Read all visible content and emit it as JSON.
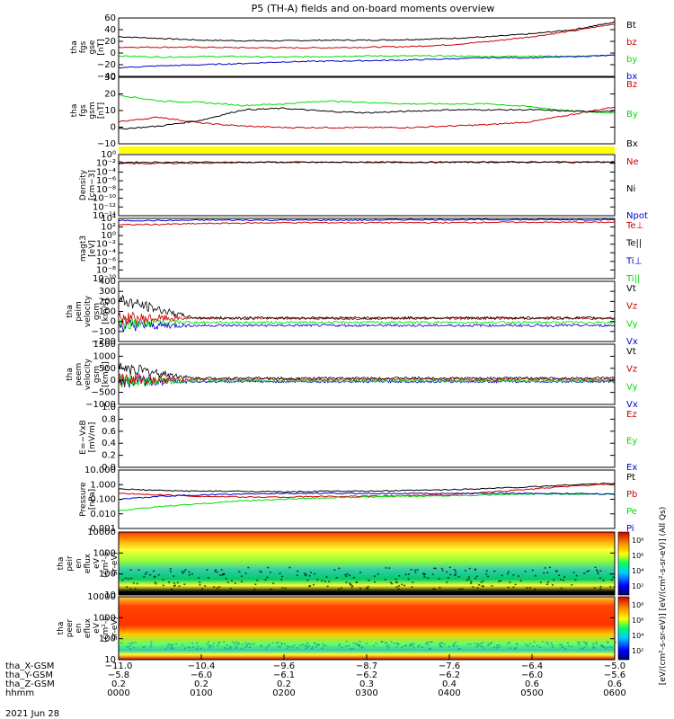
{
  "title": "P5 (TH-A) fields and on-board moments overview",
  "colors": {
    "black": "#000000",
    "red": "#cc0000",
    "green": "#00dd00",
    "blue": "#0000cc",
    "yellow": "#ffff00"
  },
  "chart_data": [
    {
      "id": "p1",
      "type": "line",
      "ylabel": [
        "tha",
        "fgs",
        "gse",
        "[nT]"
      ],
      "ylim": [
        -40,
        60
      ],
      "yticks": [
        "60",
        "40",
        "20",
        "0",
        "−20",
        "−40"
      ],
      "legend": [
        {
          "label": "Bt",
          "color": "black"
        },
        {
          "label": "bz",
          "color": "red"
        },
        {
          "label": "by",
          "color": "green"
        },
        {
          "label": "bx",
          "color": "blue"
        }
      ],
      "x_hours": [
        0,
        0.5,
        1,
        1.5,
        2,
        2.5,
        3,
        3.5,
        4,
        4.5,
        5,
        5.5,
        6
      ],
      "series": [
        {
          "label": "Bt",
          "values": [
            28,
            25,
            22,
            21,
            21,
            22,
            22,
            23,
            25,
            28,
            33,
            40,
            53
          ]
        },
        {
          "label": "bz",
          "values": [
            10,
            10,
            10,
            9,
            9,
            9,
            10,
            11,
            14,
            20,
            28,
            38,
            50
          ]
        },
        {
          "label": "by",
          "values": [
            -5,
            -7,
            -6,
            -6,
            -7,
            -6,
            -5,
            -5,
            -5,
            -6,
            -5,
            -6,
            -4
          ]
        },
        {
          "label": "bx",
          "values": [
            -25,
            -22,
            -20,
            -18,
            -15,
            -14,
            -13,
            -12,
            -10,
            -8,
            -8,
            -6,
            -4
          ]
        }
      ]
    },
    {
      "id": "p2",
      "type": "line",
      "ylabel": [
        "tha",
        "fgs",
        "gsm",
        "[nT]"
      ],
      "ylim": [
        -15,
        30
      ],
      "yticks": [
        "30",
        "20",
        "10",
        "0",
        "−10"
      ],
      "legend": [
        {
          "label": "Bz",
          "color": "red"
        },
        {
          "label": "By",
          "color": "green"
        },
        {
          "label": "Bx",
          "color": "black"
        }
      ],
      "x_hours": [
        0,
        0.5,
        1,
        1.5,
        2,
        2.5,
        3,
        3.5,
        4,
        4.5,
        5,
        5.5,
        6
      ],
      "series": [
        {
          "label": "Bz",
          "values": [
            0,
            3,
            -1,
            -3,
            -4,
            -4,
            -4,
            -4,
            -3,
            -2,
            0,
            5,
            10
          ]
        },
        {
          "label": "By",
          "values": [
            18,
            14,
            13,
            11,
            12,
            14,
            13,
            12,
            12,
            12,
            10,
            7,
            6
          ]
        },
        {
          "label": "Bx",
          "values": [
            -5,
            -3,
            1,
            8,
            9,
            7,
            6,
            7,
            8,
            8,
            8,
            7,
            7
          ]
        }
      ]
    },
    {
      "id": "p3",
      "type": "line",
      "log": true,
      "ylabel": [
        "Density",
        "[cm−3]"
      ],
      "ylim_exp": [
        -14,
        2
      ],
      "yticks": [
        "10⁰",
        "10⁻²",
        "10⁻⁴",
        "10⁻⁶",
        "10⁻⁸",
        "10⁻¹⁰",
        "10⁻¹²",
        "10⁻¹⁴"
      ],
      "legend": [
        {
          "label": "Ne",
          "color": "red"
        },
        {
          "label": "Ni",
          "color": "black"
        },
        {
          "label": "Npot",
          "color": "blue"
        }
      ],
      "series": [
        {
          "label": "Ne",
          "exp": [
            -0.4,
            -0.3,
            -0.2,
            -0.1,
            0,
            0,
            0,
            0,
            0,
            0.1,
            0.1,
            0.1,
            0.1
          ]
        },
        {
          "label": "Ni",
          "exp": [
            0,
            0,
            0,
            0,
            0,
            0,
            0,
            0,
            0,
            0,
            0,
            0,
            0
          ]
        }
      ]
    },
    {
      "id": "p4",
      "type": "line",
      "log": true,
      "ylabel": [
        "magt3",
        "[eV]"
      ],
      "ylim_exp": [
        -10,
        4
      ],
      "yticks": [
        "10⁴",
        "10²",
        "10⁰",
        "10⁻²",
        "10⁻⁴",
        "10⁻⁶",
        "10⁻⁸",
        "10⁻¹⁰"
      ],
      "legend": [
        {
          "label": "Te⊥",
          "color": "red"
        },
        {
          "label": "Te||",
          "color": "black"
        },
        {
          "label": "Ti⊥",
          "color": "blue"
        },
        {
          "label": "Ti||",
          "color": "green"
        }
      ],
      "series": [
        {
          "label": "Te⊥",
          "exp": [
            2.5,
            2.6,
            2.8,
            2.9,
            3,
            3,
            3,
            3,
            3,
            3.1,
            3.1,
            3.1,
            3.1
          ]
        },
        {
          "label": "Ti⊥",
          "exp": [
            3.5,
            3.5,
            3.6,
            3.6,
            3.6,
            3.6,
            3.6,
            3.7,
            3.7,
            3.7,
            3.7,
            3.7,
            3.7
          ]
        }
      ]
    },
    {
      "id": "p5",
      "type": "line",
      "ylabel": [
        "tha",
        "peim",
        "velocity",
        "gsm",
        "[km/s]"
      ],
      "ylim": [
        -200,
        400
      ],
      "yticks": [
        "400",
        "300",
        "200",
        "100",
        "0",
        "−100",
        "−200"
      ],
      "legend": [
        {
          "label": "Vt",
          "color": "black"
        },
        {
          "label": "Vz",
          "color": "red"
        },
        {
          "label": "Vy",
          "color": "green"
        },
        {
          "label": "Vx",
          "color": "blue"
        }
      ]
    },
    {
      "id": "p6",
      "type": "line",
      "ylabel": [
        "tha",
        "peem",
        "velocity",
        "gsm",
        "[km/s]"
      ],
      "ylim": [
        -1000,
        1500
      ],
      "yticks": [
        "1500",
        "1000",
        "500",
        "0",
        "−500",
        "−1000"
      ],
      "legend": [
        {
          "label": "Vt",
          "color": "black"
        },
        {
          "label": "Vz",
          "color": "red"
        },
        {
          "label": "Vy",
          "color": "green"
        },
        {
          "label": "Vx",
          "color": "blue"
        }
      ]
    },
    {
      "id": "p7",
      "type": "line",
      "ylabel": [
        "E=−VxB",
        "[mV/m]"
      ],
      "ylim": [
        0,
        1
      ],
      "yticks": [
        "1.0",
        "0.8",
        "0.6",
        "0.4",
        "0.2",
        "0.0"
      ],
      "legend": [
        {
          "label": "Ez",
          "color": "red"
        },
        {
          "label": "Ey",
          "color": "green"
        },
        {
          "label": "Ex",
          "color": "blue"
        }
      ]
    },
    {
      "id": "p8",
      "type": "line",
      "log": true,
      "ylabel": [
        "Pressure",
        "[nPa]"
      ],
      "ylim_exp": [
        -3,
        1
      ],
      "yticks": [
        "10.000",
        "1.000",
        "0.100",
        "0.010",
        "0.001"
      ],
      "legend": [
        {
          "label": "Pt",
          "color": "black"
        },
        {
          "label": "Pb",
          "color": "red"
        },
        {
          "label": "Pe",
          "color": "green"
        },
        {
          "label": "Pi",
          "color": "blue"
        }
      ],
      "x_hours": [
        0,
        0.5,
        1,
        1.5,
        2,
        2.5,
        3,
        3.5,
        4,
        4.5,
        5,
        5.5,
        6
      ],
      "series": [
        {
          "label": "Pt",
          "exp": [
            -0.3,
            -0.4,
            -0.45,
            -0.45,
            -0.5,
            -0.45,
            -0.45,
            -0.4,
            -0.35,
            -0.25,
            -0.15,
            0,
            0.1
          ]
        },
        {
          "label": "Pb",
          "exp": [
            -0.6,
            -0.7,
            -0.8,
            -0.85,
            -0.85,
            -0.8,
            -0.8,
            -0.75,
            -0.7,
            -0.5,
            -0.3,
            -0.1,
            0.05
          ]
        },
        {
          "label": "Pe",
          "exp": [
            -1.8,
            -1.5,
            -1.3,
            -1.1,
            -1.0,
            -0.9,
            -0.85,
            -0.8,
            -0.75,
            -0.7,
            -0.65,
            -0.65,
            -0.65
          ]
        },
        {
          "label": "Pi",
          "exp": [
            -1.0,
            -0.8,
            -0.7,
            -0.65,
            -0.6,
            -0.6,
            -0.6,
            -0.6,
            -0.6,
            -0.6,
            -0.6,
            -0.6,
            -0.65
          ]
        }
      ]
    },
    {
      "id": "p9",
      "type": "heatmap",
      "ylabel": [
        "tha",
        "peir",
        "en",
        "eflux",
        "eV",
        "(cm²-s-",
        "sr-eV)"
      ],
      "yticks": [
        "10000",
        "1000",
        "100",
        "10"
      ],
      "colorbar_ticks": [
        "10⁸",
        "10⁶",
        "10⁴",
        "10²"
      ]
    },
    {
      "id": "p10",
      "type": "heatmap",
      "ylabel": [
        "tha",
        "peer",
        "en",
        "eflux",
        "eV",
        "(cm²-s-",
        "sr-eV)"
      ],
      "yticks": [
        "10000",
        "1000",
        "100",
        "10"
      ],
      "colorbar_ticks": [
        "10⁸",
        "10⁶",
        "10⁴",
        "10²"
      ]
    }
  ],
  "colorbar_label": "[eV/(cm²-s-sr-eV)] [eV/(cm²-s-sr-eV)] (All Qs)",
  "x_axis": {
    "rows": [
      {
        "label": "tha_X-GSM",
        "values": [
          "−11.0",
          "−10.4",
          "−9.6",
          "−8.7",
          "−7.6",
          "−6.4",
          "−5.0"
        ]
      },
      {
        "label": "tha_Y-GSM",
        "values": [
          "−5.8",
          "−6.0",
          "−6.1",
          "−6.2",
          "−6.2",
          "−6.0",
          "−5.6"
        ]
      },
      {
        "label": "tha_Z-GSM",
        "values": [
          "0.2",
          "0.2",
          "0.2",
          "0.3",
          "0.4",
          "0.6",
          "0.6"
        ]
      },
      {
        "label": "hhmm",
        "values": [
          "0000",
          "0100",
          "0200",
          "0300",
          "0400",
          "0500",
          "0600"
        ]
      }
    ],
    "date": "2021 Jun 28"
  }
}
